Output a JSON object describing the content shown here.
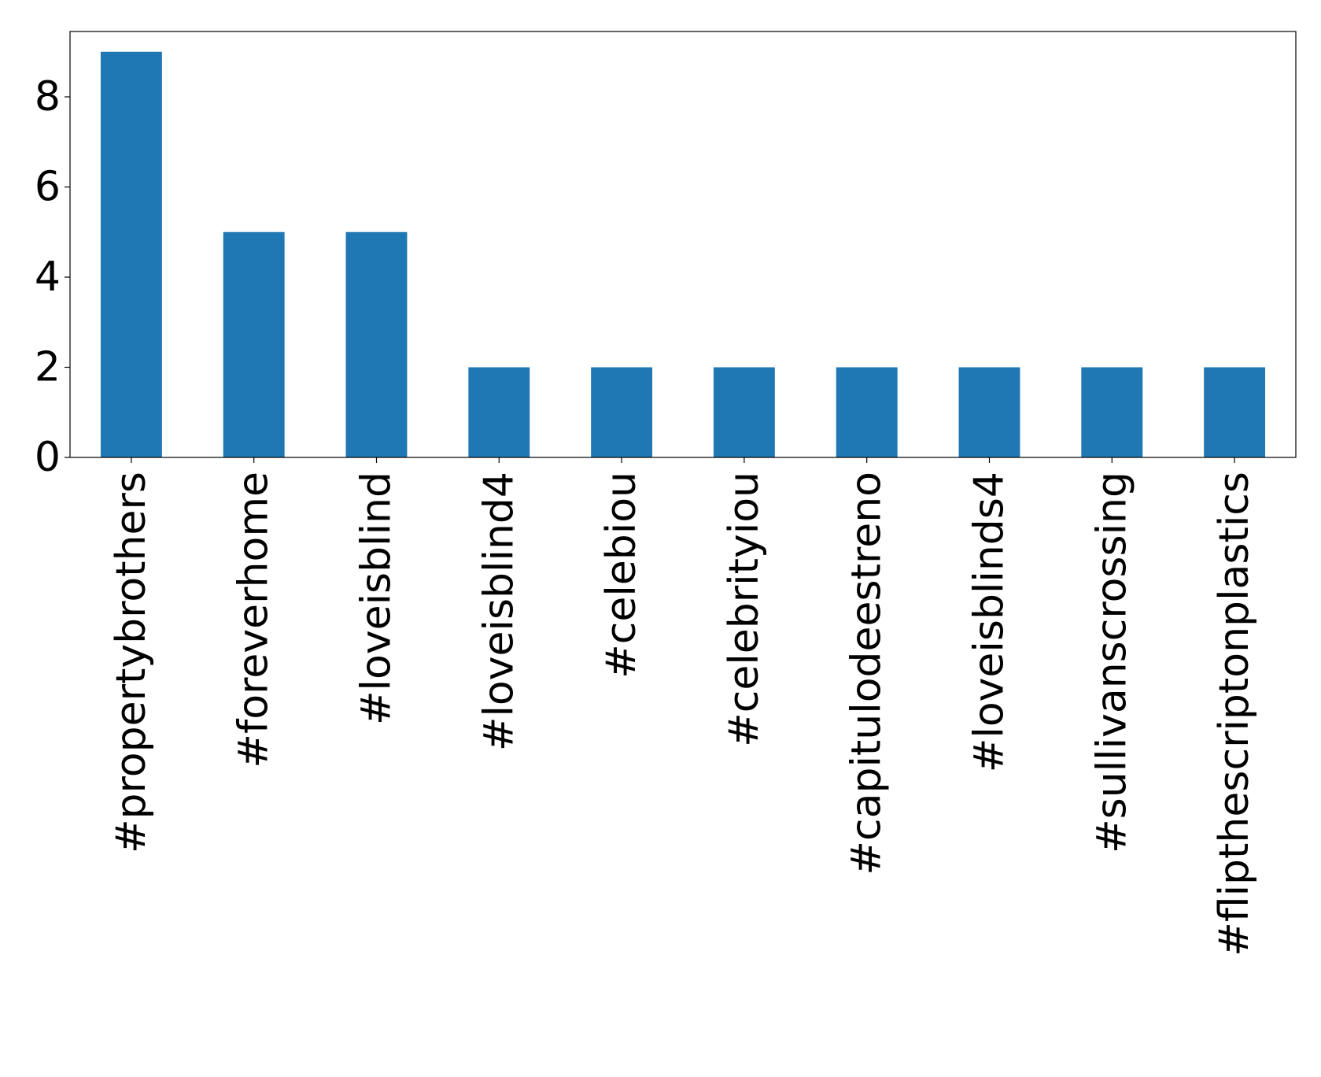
{
  "chart_data": {
    "type": "bar",
    "categories": [
      "#propertybrothers",
      "#foreverhome",
      "#loveisblind",
      "#loveisblind4",
      "#celebiou",
      "#celebrityiou",
      "#capitulodeestreno",
      "#loveisblinds4",
      "#sullivanscrossing",
      "#flipthescriptonplastics"
    ],
    "values": [
      9,
      5,
      5,
      2,
      2,
      2,
      2,
      2,
      2,
      2
    ],
    "color": "#1f77b4",
    "ylim": [
      0,
      9.45
    ],
    "yticks": [
      0,
      2,
      4,
      6,
      8
    ],
    "grid": false
  }
}
